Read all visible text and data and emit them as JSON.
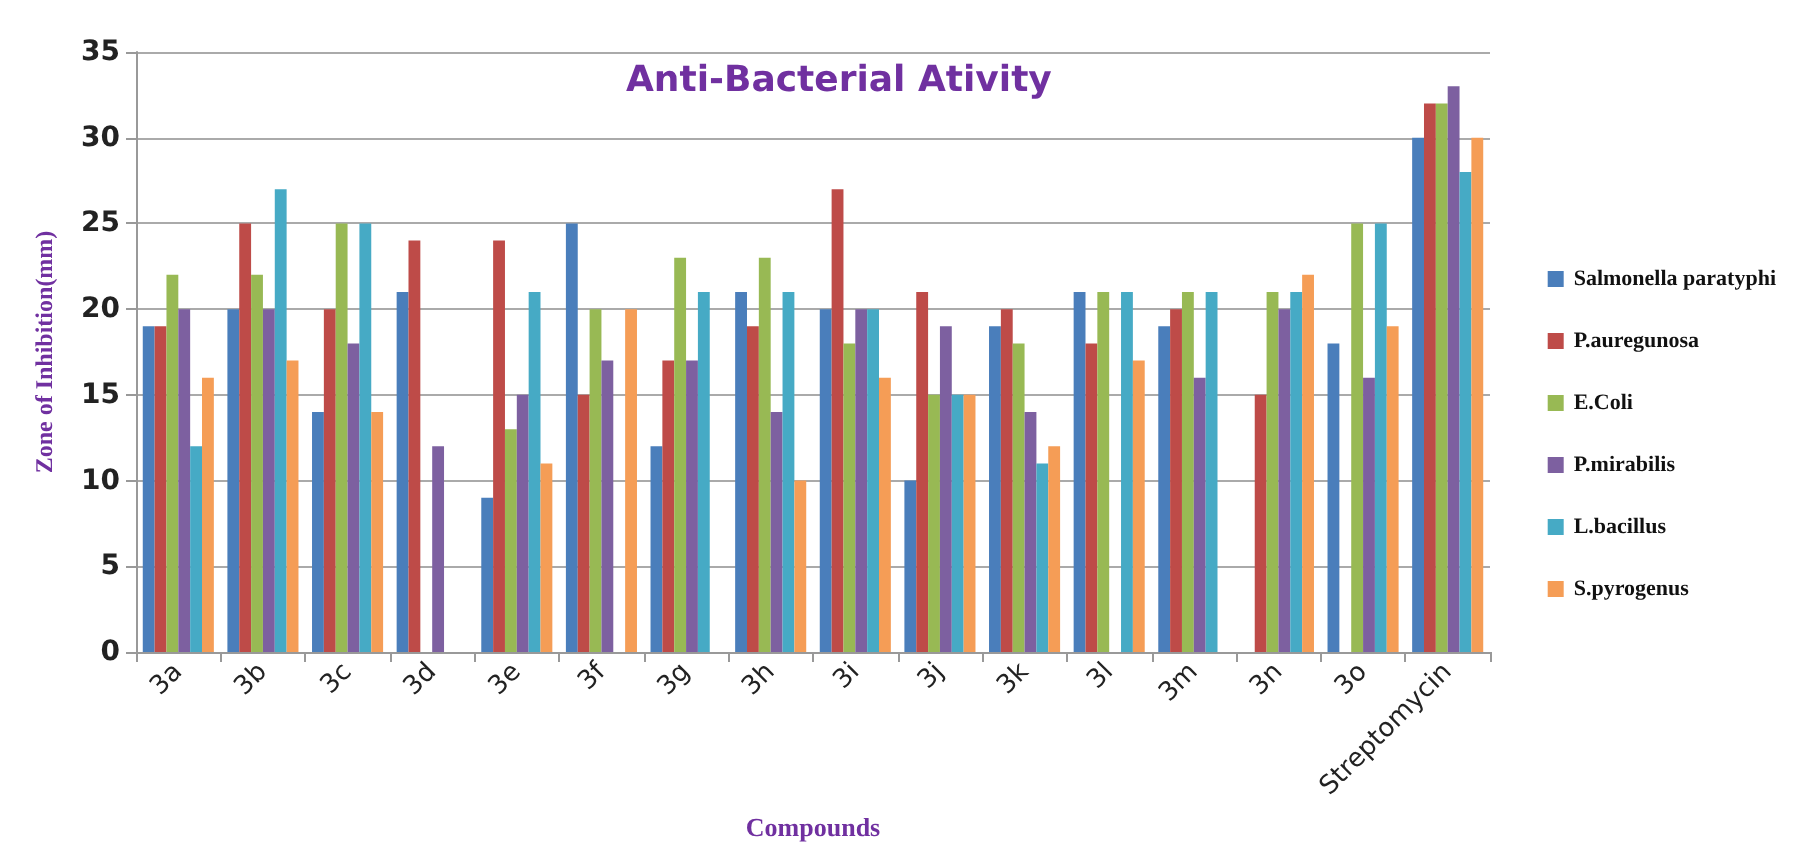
{
  "chart_data": {
    "type": "bar",
    "title": "Anti-Bacterial Ativity",
    "xlabel": "Compounds",
    "ylabel": "Zone of Inhibition(mm)",
    "categories": [
      "3a",
      "3b",
      "3c",
      "3d",
      "3e",
      "3f",
      "3g",
      "3h",
      "3i",
      "3j",
      "3k",
      "3l",
      "3m",
      "3n",
      "3o",
      "Streptomycin"
    ],
    "series": [
      {
        "name": "Salmonella paratyphi",
        "color": "#4a7ebb",
        "values": [
          19,
          20,
          14,
          21,
          9,
          25,
          12,
          21,
          20,
          10,
          19,
          21,
          19,
          0,
          18,
          30
        ]
      },
      {
        "name": "P.auregunosa",
        "color": "#be4b48",
        "values": [
          19,
          25,
          20,
          24,
          24,
          15,
          17,
          19,
          27,
          21,
          20,
          18,
          20,
          15,
          0,
          32
        ]
      },
      {
        "name": "E.Coli",
        "color": "#98b954",
        "values": [
          22,
          22,
          25,
          0,
          13,
          20,
          23,
          23,
          18,
          15,
          18,
          21,
          21,
          21,
          25,
          32
        ]
      },
      {
        "name": "P.mirabilis",
        "color": "#7d60a0",
        "values": [
          20,
          20,
          18,
          12,
          15,
          17,
          17,
          14,
          20,
          19,
          14,
          0,
          16,
          20,
          16,
          33
        ]
      },
      {
        "name": "L.bacillus",
        "color": "#46aac5",
        "values": [
          12,
          27,
          25,
          0,
          21,
          0,
          21,
          21,
          20,
          15,
          11,
          21,
          21,
          21,
          25,
          28
        ]
      },
      {
        "name": "S.pyrogenus",
        "color": "#f59d56",
        "values": [
          16,
          17,
          14,
          0,
          11,
          20,
          0,
          10,
          16,
          15,
          12,
          17,
          0,
          22,
          19,
          30
        ]
      }
    ],
    "ylim": [
      0,
      35
    ],
    "yticks": [
      0,
      5,
      10,
      15,
      20,
      25,
      30,
      35
    ],
    "grid": "y",
    "legend": "right"
  }
}
